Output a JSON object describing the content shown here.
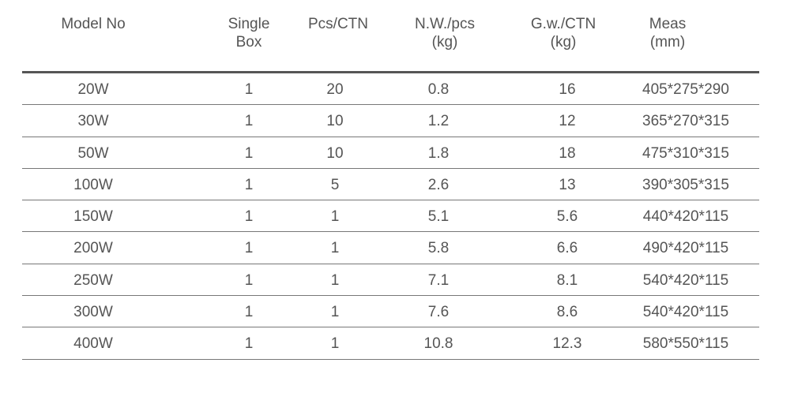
{
  "headers": {
    "model": "Model No",
    "single_box": "Single\nBox",
    "pcs_ctn": "Pcs/CTN",
    "nw": "N.W./pcs\n(kg)",
    "gw": "G.w./CTN\n(kg)",
    "meas": "Meas\n(mm)"
  },
  "rows": [
    {
      "model": "20W",
      "single_box": "1",
      "pcs_ctn": "20",
      "nw": "0.8",
      "gw": "16",
      "meas": "405*275*290"
    },
    {
      "model": "30W",
      "single_box": "1",
      "pcs_ctn": "10",
      "nw": "1.2",
      "gw": "12",
      "meas": "365*270*315"
    },
    {
      "model": "50W",
      "single_box": "1",
      "pcs_ctn": "10",
      "nw": "1.8",
      "gw": "18",
      "meas": "475*310*315"
    },
    {
      "model": "100W",
      "single_box": "1",
      "pcs_ctn": "5",
      "nw": "2.6",
      "gw": "13",
      "meas": "390*305*315"
    },
    {
      "model": "150W",
      "single_box": "1",
      "pcs_ctn": "1",
      "nw": "5.1",
      "gw": "5.6",
      "meas": "440*420*115"
    },
    {
      "model": "200W",
      "single_box": "1",
      "pcs_ctn": "1",
      "nw": "5.8",
      "gw": "6.6",
      "meas": "490*420*115"
    },
    {
      "model": "250W",
      "single_box": "1",
      "pcs_ctn": "1",
      "nw": "7.1",
      "gw": "8.1",
      "meas": "540*420*115"
    },
    {
      "model": "300W",
      "single_box": "1",
      "pcs_ctn": "1",
      "nw": "7.6",
      "gw": "8.6",
      "meas": "540*420*115"
    },
    {
      "model": "400W",
      "single_box": "1",
      "pcs_ctn": "1",
      "nw": "10.8",
      "gw": "12.3",
      "meas": "580*550*115"
    }
  ],
  "colors": {
    "text": "#555555",
    "rule": "#555555",
    "row_line": "#777777"
  }
}
